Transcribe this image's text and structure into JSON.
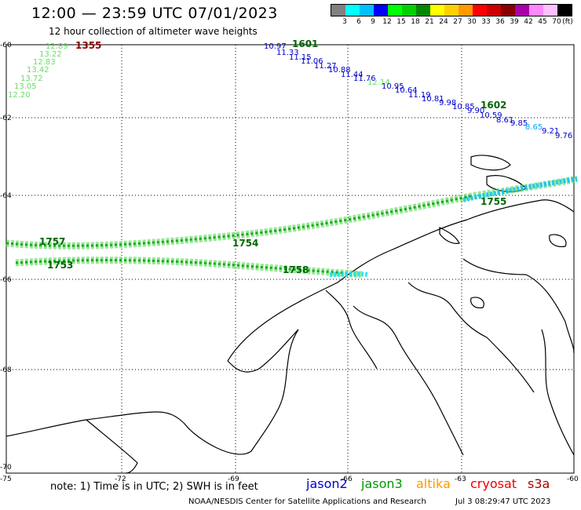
{
  "title": "12:00 — 23:59 UTC 07/01/2023",
  "subtitle": "12 hour collection of altimeter wave heights",
  "legend": {
    "unit": "(ft)",
    "colors": [
      "#808080",
      "#00ffff",
      "#00bfff",
      "#0000ff",
      "#00ff00",
      "#00d000",
      "#008800",
      "#ffff00",
      "#ffd000",
      "#ff9900",
      "#ff0000",
      "#cc0000",
      "#880000",
      "#aa00aa",
      "#ff88ff",
      "#ffc0ff",
      "#000000"
    ],
    "labels": [
      "3",
      "6",
      "9",
      "12",
      "15",
      "18",
      "21",
      "24",
      "27",
      "30",
      "33",
      "36",
      "39",
      "42",
      "45",
      "70"
    ]
  },
  "axes": {
    "lat_labels": [
      "-60",
      "-62",
      "-64",
      "-66",
      "-68",
      "-70"
    ],
    "lon_labels": [
      "-75",
      "-72",
      "-69",
      "-66",
      "-63",
      "-60"
    ]
  },
  "track_labels": {
    "track1_times": [
      "1601",
      "1602"
    ],
    "track1_values": [
      "10.97",
      "11.33",
      "11.15",
      "11.06",
      "11.27",
      "10.88",
      "11.44",
      "11.76",
      "12.14",
      "10.95",
      "10.64",
      "11.19",
      "10.81",
      "9.98",
      "10.85",
      "9.90",
      "10.59",
      "8.61",
      "9.85",
      "8.65",
      "9.21",
      "9.76"
    ],
    "track2_time": "1355",
    "track2_values": [
      "12.89",
      "13.22",
      "12.83",
      "13.42",
      "13.72",
      "13.05",
      "12.20"
    ],
    "track3_times": [
      "1757",
      "1754",
      "1755"
    ],
    "track4_times": [
      "1758",
      "1753"
    ]
  },
  "footer": {
    "note": "note:  1) Time is in UTC;  2) SWH is in feet",
    "satellites": [
      {
        "name": "jason2",
        "color": "#0000cc"
      },
      {
        "name": "jason3",
        "color": "#009900"
      },
      {
        "name": "altika",
        "color": "#ff9900"
      },
      {
        "name": "cryosat",
        "color": "#ee0000"
      },
      {
        "name": "s3a",
        "color": "#aa0000"
      }
    ],
    "credit": "NOAA/NESDIS Center for Satellite Applications and Research",
    "timestamp": "Jul  3 08:29:47 UTC 2023"
  }
}
